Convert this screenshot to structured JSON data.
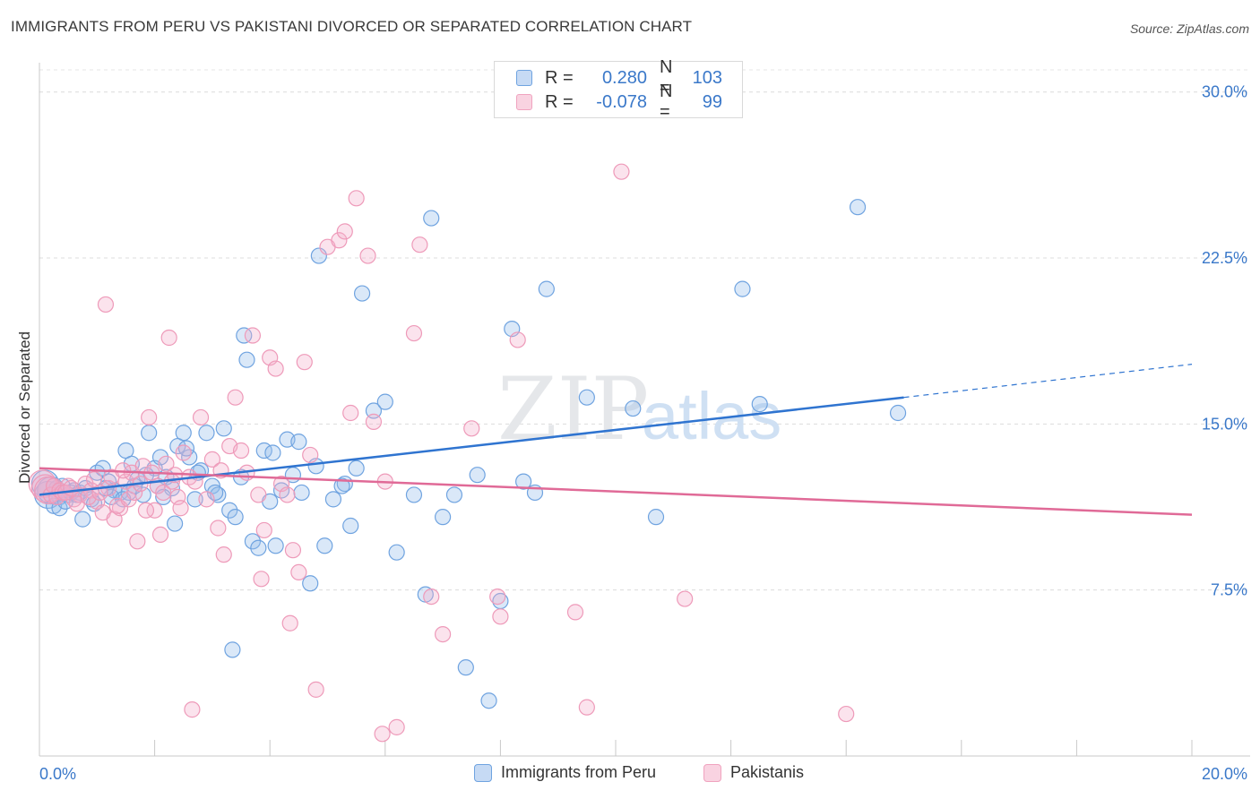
{
  "title": "IMMIGRANTS FROM PERU VS PAKISTANI DIVORCED OR SEPARATED CORRELATION CHART",
  "source": "Source: ZipAtlas.com",
  "watermark": {
    "zip": "ZIP",
    "atlas": "atlas"
  },
  "legend_top": {
    "rows": [
      {
        "label": "R =",
        "r": "0.280",
        "n_label": "N =",
        "n": "103",
        "color": "#6fa3e0"
      },
      {
        "label": "R =",
        "r": "-0.078",
        "n_label": "N =",
        "n": "99",
        "color": "#f0a3bf"
      }
    ]
  },
  "legend_bottom": [
    "Immigrants from Peru",
    "Pakistanis"
  ],
  "chart_data": {
    "type": "scatter",
    "title": "IMMIGRANTS FROM PERU VS PAKISTANI DIVORCED OR SEPARATED CORRELATION CHART",
    "xlabel": "",
    "ylabel": "Divorced or Separated",
    "xlim": [
      0,
      20
    ],
    "ylim": [
      0,
      31
    ],
    "x_tick_labels": [
      "0.0%",
      "20.0%"
    ],
    "y_ticks": [
      7.5,
      15.0,
      22.5,
      30.0
    ],
    "y_tick_labels": [
      "7.5%",
      "15.0%",
      "22.5%",
      "30.0%"
    ],
    "grid": true,
    "legend_position": "top-center",
    "series": [
      {
        "name": "Immigrants from Peru",
        "color": "#6fa3e0",
        "line_color": "#2f74d0",
        "r": 0.28,
        "n": 103,
        "trend": {
          "x0": 0,
          "y0": 11.8,
          "x1": 15.0,
          "y1": 16.2,
          "dash_to_x": 20.0,
          "dash_y1": 17.7
        },
        "points": [
          [
            0.1,
            12.3
          ],
          [
            0.15,
            11.8
          ],
          [
            0.2,
            12.0
          ],
          [
            0.25,
            11.3
          ],
          [
            0.3,
            12.1
          ],
          [
            0.35,
            11.7
          ],
          [
            0.4,
            12.2
          ],
          [
            0.5,
            11.8
          ],
          [
            0.6,
            12.0
          ],
          [
            0.7,
            11.9
          ],
          [
            0.8,
            12.1
          ],
          [
            0.9,
            11.6
          ],
          [
            0.55,
            11.9
          ],
          [
            1.0,
            12.8
          ],
          [
            1.1,
            13.0
          ],
          [
            1.2,
            12.4
          ],
          [
            1.3,
            12.0
          ],
          [
            1.4,
            11.9
          ],
          [
            1.5,
            13.8
          ],
          [
            1.6,
            13.2
          ],
          [
            1.7,
            12.5
          ],
          [
            1.8,
            11.8
          ],
          [
            1.9,
            14.6
          ],
          [
            2.0,
            13.0
          ],
          [
            2.1,
            13.5
          ],
          [
            2.2,
            12.6
          ],
          [
            2.3,
            12.1
          ],
          [
            2.4,
            14.0
          ],
          [
            2.5,
            14.6
          ],
          [
            2.6,
            13.5
          ],
          [
            2.7,
            11.6
          ],
          [
            2.8,
            12.9
          ],
          [
            2.9,
            14.6
          ],
          [
            3.0,
            12.2
          ],
          [
            3.1,
            11.8
          ],
          [
            3.2,
            14.8
          ],
          [
            3.3,
            11.1
          ],
          [
            3.4,
            10.8
          ],
          [
            3.5,
            12.6
          ],
          [
            3.6,
            17.9
          ],
          [
            3.7,
            9.7
          ],
          [
            3.8,
            9.4
          ],
          [
            3.9,
            13.8
          ],
          [
            4.0,
            11.5
          ],
          [
            4.1,
            9.5
          ],
          [
            4.2,
            12.0
          ],
          [
            4.3,
            14.3
          ],
          [
            4.4,
            12.7
          ],
          [
            4.5,
            14.2
          ],
          [
            4.7,
            7.8
          ],
          [
            4.8,
            13.1
          ],
          [
            5.1,
            11.6
          ],
          [
            5.3,
            12.3
          ],
          [
            5.4,
            10.4
          ],
          [
            5.5,
            13.0
          ],
          [
            5.6,
            20.9
          ],
          [
            5.8,
            15.6
          ],
          [
            6.0,
            16.0
          ],
          [
            6.2,
            9.2
          ],
          [
            6.5,
            11.8
          ],
          [
            6.7,
            7.3
          ],
          [
            6.8,
            24.3
          ],
          [
            7.0,
            10.8
          ],
          [
            7.2,
            11.8
          ],
          [
            7.4,
            4.0
          ],
          [
            7.6,
            12.7
          ],
          [
            7.8,
            2.5
          ],
          [
            8.0,
            7.0
          ],
          [
            8.2,
            19.3
          ],
          [
            8.4,
            12.4
          ],
          [
            8.6,
            11.9
          ],
          [
            8.8,
            21.1
          ],
          [
            9.5,
            16.2
          ],
          [
            10.3,
            15.7
          ],
          [
            10.7,
            10.8
          ],
          [
            12.2,
            21.1
          ],
          [
            12.5,
            15.9
          ],
          [
            14.2,
            24.8
          ],
          [
            14.9,
            15.5
          ],
          [
            3.35,
            4.8
          ],
          [
            0.35,
            11.2
          ],
          [
            1.25,
            11.7
          ],
          [
            1.55,
            11.9
          ],
          [
            2.05,
            12.2
          ],
          [
            2.35,
            10.5
          ],
          [
            2.75,
            12.8
          ],
          [
            3.05,
            11.9
          ],
          [
            3.55,
            19.0
          ],
          [
            4.05,
            13.7
          ],
          [
            4.55,
            11.9
          ],
          [
            4.95,
            9.5
          ],
          [
            5.25,
            12.2
          ],
          [
            0.45,
            11.5
          ],
          [
            0.65,
            11.8
          ],
          [
            0.75,
            10.7
          ],
          [
            0.95,
            11.4
          ],
          [
            1.15,
            12.1
          ],
          [
            1.45,
            11.6
          ],
          [
            1.65,
            12.2
          ],
          [
            1.85,
            12.7
          ],
          [
            2.15,
            11.7
          ],
          [
            2.55,
            13.9
          ],
          [
            4.85,
            22.6
          ]
        ]
      },
      {
        "name": "Pakistanis",
        "color": "#f0a3bf",
        "line_color": "#e06a97",
        "r": -0.078,
        "n": 99,
        "trend": {
          "x0": 0,
          "y0": 13.0,
          "x1": 20.0,
          "y1": 10.9
        },
        "points": [
          [
            0.05,
            12.3
          ],
          [
            0.1,
            12.1
          ],
          [
            0.15,
            12.0
          ],
          [
            0.2,
            11.8
          ],
          [
            0.25,
            12.2
          ],
          [
            0.3,
            11.7
          ],
          [
            0.35,
            12.0
          ],
          [
            0.4,
            11.9
          ],
          [
            0.5,
            12.2
          ],
          [
            0.6,
            11.6
          ],
          [
            0.7,
            11.8
          ],
          [
            0.8,
            12.3
          ],
          [
            0.9,
            12.0
          ],
          [
            1.0,
            11.5
          ],
          [
            1.1,
            11.0
          ],
          [
            1.2,
            12.1
          ],
          [
            1.3,
            10.7
          ],
          [
            1.4,
            11.2
          ],
          [
            1.5,
            12.4
          ],
          [
            1.6,
            12.8
          ],
          [
            1.7,
            9.7
          ],
          [
            1.8,
            13.1
          ],
          [
            1.9,
            15.3
          ],
          [
            2.0,
            11.1
          ],
          [
            2.1,
            10.0
          ],
          [
            2.2,
            13.2
          ],
          [
            2.3,
            12.4
          ],
          [
            2.4,
            11.7
          ],
          [
            2.5,
            13.7
          ],
          [
            2.6,
            12.6
          ],
          [
            2.7,
            12.4
          ],
          [
            2.8,
            15.3
          ],
          [
            2.9,
            11.6
          ],
          [
            3.0,
            13.4
          ],
          [
            3.1,
            10.3
          ],
          [
            3.2,
            9.1
          ],
          [
            3.3,
            14.0
          ],
          [
            3.4,
            16.2
          ],
          [
            3.5,
            13.8
          ],
          [
            3.6,
            12.8
          ],
          [
            3.7,
            19.0
          ],
          [
            3.8,
            11.8
          ],
          [
            3.9,
            10.2
          ],
          [
            4.0,
            18.0
          ],
          [
            4.1,
            17.5
          ],
          [
            4.2,
            12.3
          ],
          [
            4.3,
            11.8
          ],
          [
            4.4,
            9.3
          ],
          [
            4.5,
            8.3
          ],
          [
            4.6,
            17.8
          ],
          [
            4.7,
            13.6
          ],
          [
            4.8,
            3.0
          ],
          [
            5.0,
            23.0
          ],
          [
            5.2,
            23.3
          ],
          [
            5.3,
            23.7
          ],
          [
            5.4,
            15.5
          ],
          [
            5.5,
            25.2
          ],
          [
            5.7,
            22.6
          ],
          [
            5.8,
            15.1
          ],
          [
            6.0,
            12.4
          ],
          [
            6.2,
            1.3
          ],
          [
            6.5,
            19.1
          ],
          [
            6.6,
            23.1
          ],
          [
            6.8,
            7.2
          ],
          [
            7.0,
            5.5
          ],
          [
            7.5,
            14.8
          ],
          [
            8.0,
            6.3
          ],
          [
            8.3,
            18.8
          ],
          [
            9.3,
            6.5
          ],
          [
            9.5,
            2.2
          ],
          [
            10.1,
            26.4
          ],
          [
            11.2,
            7.1
          ],
          [
            14.0,
            1.9
          ],
          [
            1.15,
            20.4
          ],
          [
            2.25,
            18.9
          ],
          [
            2.65,
            2.1
          ],
          [
            3.85,
            8.0
          ],
          [
            4.35,
            6.0
          ],
          [
            5.95,
            1.0
          ],
          [
            7.95,
            7.2
          ],
          [
            0.45,
            11.9
          ],
          [
            0.55,
            12.1
          ],
          [
            0.65,
            11.4
          ],
          [
            0.85,
            11.7
          ],
          [
            0.95,
            12.5
          ],
          [
            1.05,
            11.9
          ],
          [
            1.25,
            12.6
          ],
          [
            1.35,
            11.3
          ],
          [
            1.45,
            12.9
          ],
          [
            1.55,
            11.6
          ],
          [
            1.65,
            11.9
          ],
          [
            1.75,
            12.3
          ],
          [
            1.85,
            11.1
          ],
          [
            1.95,
            12.8
          ],
          [
            2.05,
            12.2
          ],
          [
            2.15,
            11.9
          ],
          [
            2.35,
            12.7
          ],
          [
            2.45,
            11.2
          ],
          [
            3.15,
            12.9
          ]
        ]
      }
    ]
  }
}
